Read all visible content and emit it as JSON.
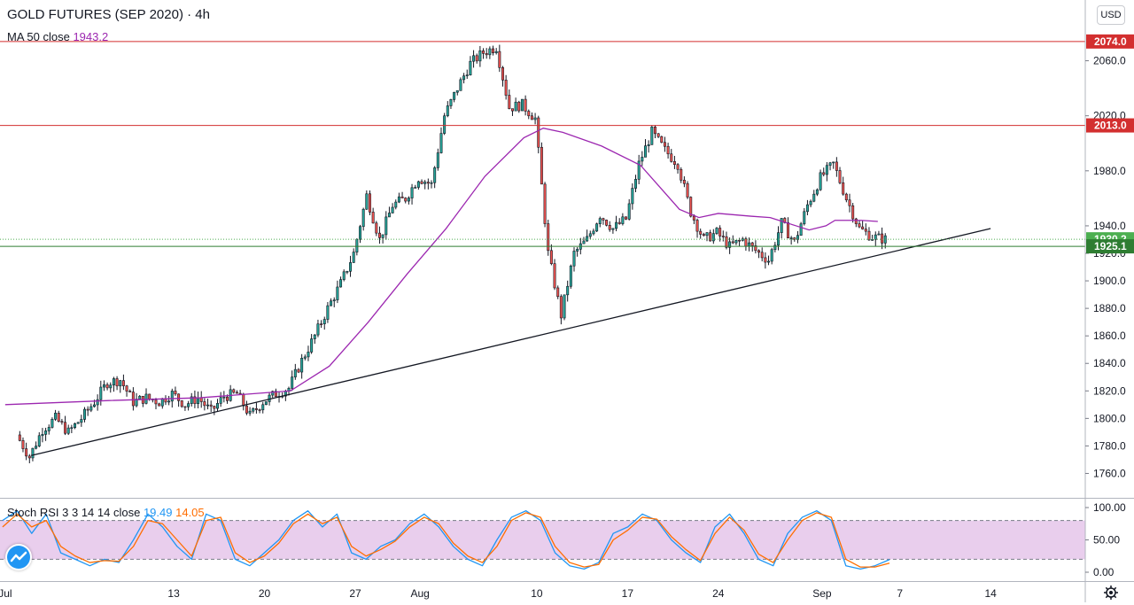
{
  "header": {
    "title": "GOLD FUTURES (SEP 2020)",
    "separator": "·",
    "interval": "4h",
    "ma_label": "MA 50 close",
    "ma_value": "1943.2",
    "ma_color": "#9c27b0",
    "currency_button": "USD"
  },
  "rsi_legend": {
    "label": "Stoch RSI 3 3 14 14 close",
    "k_value": "19.49",
    "d_value": "14.05",
    "k_color": "#2196f3",
    "d_color": "#ff6d00"
  },
  "icons": {
    "logo": "tradingview-logo-icon",
    "settings": "gear-icon"
  },
  "chart_data": [
    {
      "type": "candlestick",
      "title": "GOLD FUTURES (SEP 2020)",
      "interval": "4h",
      "ylim": [
        1750,
        2090
      ],
      "y_ticks": [
        "1760.0",
        "1780.0",
        "1800.0",
        "1820.0",
        "1840.0",
        "1860.0",
        "1880.0",
        "1900.0",
        "1920.0",
        "1940.0",
        "1980.0",
        "2020.0",
        "2060.0"
      ],
      "x_ticks": [
        "Jul",
        "13",
        "20",
        "27",
        "Aug",
        "10",
        "17",
        "24",
        "Sep",
        "7",
        "14"
      ],
      "x_tick_days": [
        -1,
        12,
        19,
        26,
        31,
        40,
        47,
        54,
        62,
        68,
        75
      ],
      "x_domain_days": [
        -1.4,
        82.3
      ],
      "colors": {
        "up": "#26a69a",
        "down": "#ef5350",
        "ma": "#9c27b0",
        "resistance": "#d32f2f",
        "support": "#2e7d32",
        "trend": "#131722"
      },
      "price_anchors": [
        [
          0,
          1788
        ],
        [
          1,
          1772
        ],
        [
          2,
          1792
        ],
        [
          3,
          1800
        ],
        [
          4,
          1790
        ],
        [
          5,
          1800
        ],
        [
          6,
          1812
        ],
        [
          7,
          1826
        ],
        [
          8,
          1828
        ],
        [
          9,
          1812
        ],
        [
          10,
          1815
        ],
        [
          11,
          1812
        ],
        [
          12,
          1818
        ],
        [
          13,
          1810
        ],
        [
          14,
          1815
        ],
        [
          15,
          1805
        ],
        [
          16,
          1816
        ],
        [
          17,
          1818
        ],
        [
          18,
          1802
        ],
        [
          19,
          1812
        ],
        [
          20,
          1818
        ],
        [
          21,
          1822
        ],
        [
          22,
          1842
        ],
        [
          23,
          1860
        ],
        [
          24,
          1880
        ],
        [
          25,
          1898
        ],
        [
          26,
          1920
        ],
        [
          27,
          1962
        ],
        [
          28,
          1930
        ],
        [
          29,
          1955
        ],
        [
          30,
          1960
        ],
        [
          31,
          1975
        ],
        [
          32,
          1970
        ],
        [
          33,
          2020
        ],
        [
          34,
          2040
        ],
        [
          35,
          2058
        ],
        [
          36,
          2066
        ],
        [
          37,
          2070
        ],
        [
          38,
          2026
        ],
        [
          39,
          2028
        ],
        [
          40,
          2018
        ],
        [
          41,
          1920
        ],
        [
          42,
          1875
        ],
        [
          43,
          1920
        ],
        [
          44,
          1930
        ],
        [
          45,
          1948
        ],
        [
          46,
          1938
        ],
        [
          47,
          1945
        ],
        [
          48,
          1985
        ],
        [
          49,
          2008
        ],
        [
          50,
          1995
        ],
        [
          51,
          1985
        ],
        [
          52,
          1950
        ],
        [
          53,
          1930
        ],
        [
          54,
          1935
        ],
        [
          55,
          1925
        ],
        [
          56,
          1930
        ],
        [
          57,
          1922
        ],
        [
          58,
          1915
        ],
        [
          59,
          1942
        ],
        [
          60,
          1928
        ],
        [
          61,
          1955
        ],
        [
          62,
          1975
        ],
        [
          63,
          1985
        ],
        [
          64,
          1960
        ],
        [
          65,
          1938
        ],
        [
          66,
          1932
        ],
        [
          67,
          1930.2
        ]
      ],
      "ma50": [
        [
          -1,
          1810
        ],
        [
          7,
          1813
        ],
        [
          14,
          1815
        ],
        [
          21,
          1820
        ],
        [
          24,
          1838
        ],
        [
          27,
          1870
        ],
        [
          30,
          1905
        ],
        [
          33,
          1938
        ],
        [
          36,
          1976
        ],
        [
          39,
          2004
        ],
        [
          40.5,
          2011
        ],
        [
          42,
          2008
        ],
        [
          45,
          1998
        ],
        [
          48,
          1984
        ],
        [
          49.5,
          1968
        ],
        [
          51,
          1952
        ],
        [
          52.5,
          1946
        ],
        [
          54,
          1949
        ],
        [
          56.5,
          1947
        ],
        [
          58,
          1946
        ],
        [
          60,
          1940
        ],
        [
          61,
          1937
        ],
        [
          62.3,
          1940
        ],
        [
          63,
          1944
        ],
        [
          65,
          1944
        ],
        [
          66.3,
          1943.2
        ]
      ],
      "horizontal_levels": [
        {
          "value": 2074.0,
          "label": "2074.0",
          "color": "#d32f2f",
          "style": "solid"
        },
        {
          "value": 2013.0,
          "label": "2013.0",
          "color": "#d32f2f",
          "style": "solid"
        },
        {
          "value": 1930.2,
          "label": "1930.2",
          "color": "#4caf50",
          "style": "dotted"
        },
        {
          "value": 1925.1,
          "label": "1925.1",
          "color": "#2e7d32",
          "style": "solid"
        }
      ],
      "trendline": [
        [
          1,
          1773
        ],
        [
          75,
          1938
        ]
      ],
      "last_close": 1930.2
    },
    {
      "type": "line",
      "title": "Stoch RSI 3 3 14 14 close",
      "ylim": [
        0,
        100
      ],
      "y_ticks": [
        "100.00",
        "50.00",
        "0.00"
      ],
      "band": [
        20,
        80
      ],
      "band_color": "#e1bee7",
      "series": [
        {
          "name": "K",
          "color": "#2196f3",
          "last": 19.49,
          "values": [
            80,
            95,
            60,
            90,
            30,
            20,
            10,
            20,
            15,
            50,
            90,
            70,
            40,
            20,
            90,
            80,
            20,
            10,
            30,
            50,
            80,
            95,
            70,
            90,
            30,
            20,
            40,
            50,
            75,
            90,
            70,
            40,
            20,
            10,
            50,
            85,
            95,
            80,
            30,
            10,
            5,
            15,
            60,
            70,
            90,
            80,
            50,
            30,
            15,
            70,
            90,
            60,
            20,
            10,
            60,
            85,
            95,
            80,
            10,
            5,
            10,
            19.49
          ]
        },
        {
          "name": "D",
          "color": "#ff6d00",
          "last": 14.05,
          "values": [
            70,
            90,
            70,
            80,
            40,
            25,
            15,
            18,
            17,
            40,
            80,
            75,
            50,
            25,
            80,
            85,
            30,
            15,
            25,
            45,
            75,
            90,
            75,
            85,
            40,
            25,
            35,
            48,
            70,
            85,
            75,
            45,
            25,
            15,
            40,
            80,
            92,
            85,
            40,
            15,
            8,
            12,
            50,
            65,
            85,
            82,
            55,
            35,
            18,
            60,
            85,
            65,
            28,
            15,
            50,
            80,
            92,
            85,
            20,
            8,
            8,
            14.05
          ]
        }
      ],
      "x_domain": [
        0,
        61
      ]
    }
  ]
}
